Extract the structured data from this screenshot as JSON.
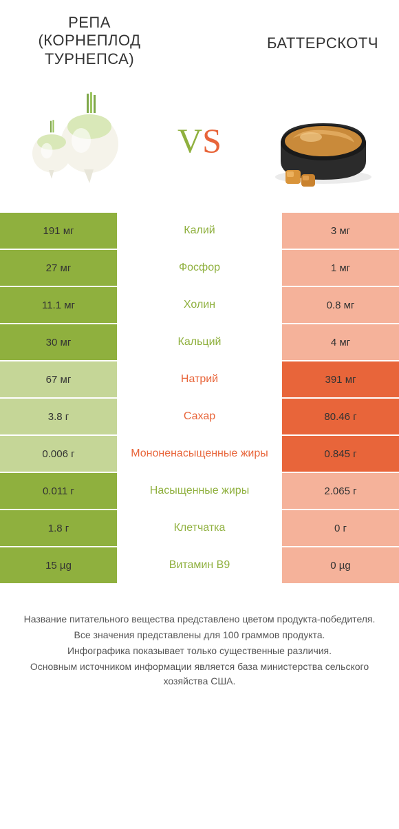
{
  "header": {
    "left_title": "РЕПА (КОРНЕПЛОД ТУРНЕПСА)",
    "right_title": "БАТТЕРСКОТЧ",
    "vs_v": "V",
    "vs_s": "S"
  },
  "colors": {
    "left_full": "#8fb03e",
    "left_dim": "#c5d697",
    "right_full": "#e8653a",
    "right_dim": "#f5b29a",
    "mid_left_text": "#8fb03e",
    "mid_right_text": "#e8653a"
  },
  "rows": [
    {
      "label": "Калий",
      "left": "191 мг",
      "right": "3 мг",
      "winner": "left"
    },
    {
      "label": "Фосфор",
      "left": "27 мг",
      "right": "1 мг",
      "winner": "left"
    },
    {
      "label": "Холин",
      "left": "11.1 мг",
      "right": "0.8 мг",
      "winner": "left"
    },
    {
      "label": "Кальций",
      "left": "30 мг",
      "right": "4 мг",
      "winner": "left"
    },
    {
      "label": "Натрий",
      "left": "67 мг",
      "right": "391 мг",
      "winner": "right"
    },
    {
      "label": "Сахар",
      "left": "3.8 г",
      "right": "80.46 г",
      "winner": "right"
    },
    {
      "label": "Мононенасыщенные жиры",
      "left": "0.006 г",
      "right": "0.845 г",
      "winner": "right"
    },
    {
      "label": "Насыщенные жиры",
      "left": "0.011 г",
      "right": "2.065 г",
      "winner": "left"
    },
    {
      "label": "Клетчатка",
      "left": "1.8 г",
      "right": "0 г",
      "winner": "left"
    },
    {
      "label": "Витамин B9",
      "left": "15 µg",
      "right": "0 µg",
      "winner": "left"
    }
  ],
  "footnote": {
    "line1": "Название питательного вещества представлено цветом продукта-победителя.",
    "line2": "Все значения представлены для 100 граммов продукта.",
    "line3": "Инфографика показывает только существенные различия.",
    "line4": "Основным источником информации является база министерства сельского хозяйства США."
  }
}
